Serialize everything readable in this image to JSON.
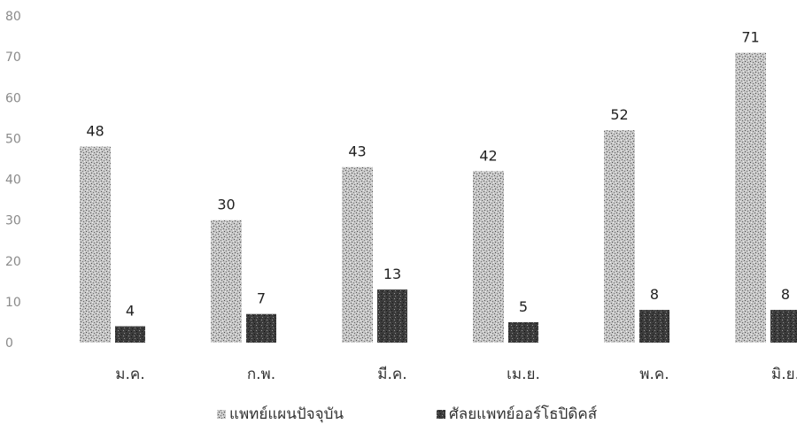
{
  "chart_data": {
    "type": "bar",
    "title": "",
    "xlabel": "",
    "ylabel": "",
    "ylim": [
      0,
      80
    ],
    "yticks": [
      0,
      10,
      20,
      30,
      40,
      50,
      60,
      70,
      80
    ],
    "grid": false,
    "legend_position": "bottom",
    "categories": [
      "ม.ค.",
      "ก.พ.",
      "มี.ค.",
      "เม.ย.",
      "พ.ค.",
      "มิ.ย."
    ],
    "series": [
      {
        "name": "แพทย์แผนปัจจุบัน",
        "values": [
          48,
          30,
          43,
          42,
          52,
          71
        ],
        "color": "#b8b8b8",
        "pattern": "speckled-light"
      },
      {
        "name": "ศัลยแพทย์ออร์โธปิดิคส์",
        "values": [
          4,
          7,
          13,
          5,
          8,
          8
        ],
        "color": "#3a3a3a",
        "pattern": "speckled-dark"
      }
    ]
  }
}
